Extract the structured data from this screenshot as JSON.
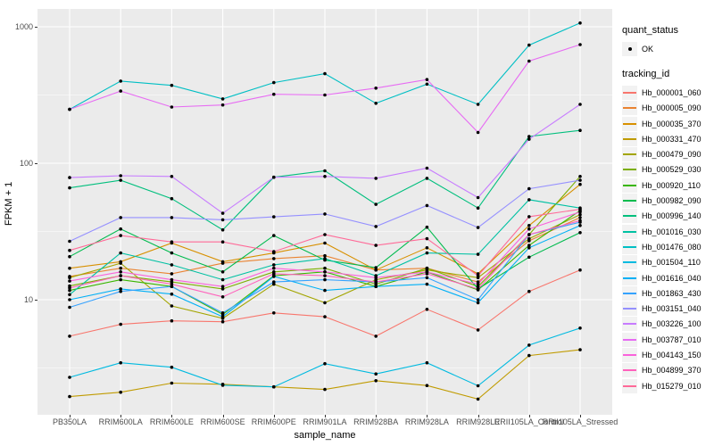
{
  "chart_data": {
    "type": "line",
    "title": "",
    "xlabel": "sample_name",
    "ylabel": "FPKM + 1",
    "y_scale": "log10",
    "ylim": [
      1.4,
      1400
    ],
    "y_ticks": [
      {
        "value": 10,
        "label": "10"
      },
      {
        "value": 100,
        "label": "100"
      },
      {
        "value": 1000,
        "label": "1000"
      }
    ],
    "y_minor_ticks": [
      3.1623,
      31.623,
      316.23
    ],
    "grid": "white major+minor on grey panel",
    "legend_position": "right",
    "marker": "black point on every vertex",
    "categories": [
      "PB350LA",
      "RRIM600LA",
      "RRIM600LE",
      "RRIM600SE",
      "RRIM600PE",
      "RRIM901LA",
      "RRIM928BA",
      "RRIM928LA",
      "RRIM928LE",
      "RRII105LA_Control",
      "RRII105LA_Stressed"
    ],
    "series": [
      {
        "name": "Hb_000001_060",
        "color": "#F8766D",
        "values": [
          5.4,
          6.6,
          7.0,
          6.9,
          8.0,
          7.5,
          5.4,
          8.5,
          6.0,
          11.5,
          16.5
        ]
      },
      {
        "name": "Hb_000005_090",
        "color": "#EA8331",
        "values": [
          14.8,
          17,
          15.5,
          18.5,
          20,
          21,
          16.5,
          17,
          13.5,
          27,
          40
        ]
      },
      {
        "name": "Hb_000035_370",
        "color": "#D89000",
        "values": [
          17,
          19,
          26,
          19,
          22,
          26,
          16.5,
          24,
          15.5,
          35,
          70
        ]
      },
      {
        "name": "Hb_000331_470",
        "color": "#C09B00",
        "values": [
          1.95,
          2.1,
          2.45,
          2.4,
          2.3,
          2.2,
          2.55,
          2.35,
          1.87,
          3.9,
          4.3
        ]
      },
      {
        "name": "Hb_000479_090",
        "color": "#A3A500",
        "values": [
          14.5,
          18.5,
          9.0,
          7.3,
          13,
          9.5,
          14,
          16.5,
          14.5,
          28,
          42
        ]
      },
      {
        "name": "Hb_000529_030",
        "color": "#7CAE00",
        "values": [
          12.6,
          15,
          13.5,
          12,
          16,
          17,
          13,
          17,
          12.5,
          30,
          80
        ]
      },
      {
        "name": "Hb_000920_110",
        "color": "#39B600",
        "values": [
          11.7,
          14,
          12.5,
          7.8,
          15,
          16,
          12.5,
          16,
          11.8,
          25,
          45
        ]
      },
      {
        "name": "Hb_000982_090",
        "color": "#00BB4E",
        "values": [
          20.7,
          33,
          22,
          16,
          29.5,
          19.5,
          17.2,
          34,
          12,
          20.5,
          31
        ]
      },
      {
        "name": "Hb_000996_140",
        "color": "#00BF7D",
        "values": [
          66,
          75,
          55,
          32.5,
          79,
          88,
          50,
          77.5,
          47,
          157,
          174
        ]
      },
      {
        "name": "Hb_001016_030",
        "color": "#00C1A3",
        "values": [
          10.9,
          22,
          18,
          14,
          18,
          20,
          15,
          22,
          21.5,
          54,
          47
        ]
      },
      {
        "name": "Hb_001476_080",
        "color": "#00BFC4",
        "values": [
          248,
          400,
          372,
          296,
          390,
          453,
          275,
          380,
          270,
          733,
          1065
        ]
      },
      {
        "name": "Hb_001504_110",
        "color": "#00BAE0",
        "values": [
          2.7,
          3.45,
          3.2,
          2.36,
          2.3,
          3.4,
          2.86,
          3.45,
          2.34,
          4.65,
          6.2
        ]
      },
      {
        "name": "Hb_001616_040",
        "color": "#00B0F6",
        "values": [
          10.0,
          12,
          11,
          7.5,
          14.8,
          11.7,
          12.5,
          13,
          9.5,
          24,
          35
        ]
      },
      {
        "name": "Hb_001863_430",
        "color": "#35A2FF",
        "values": [
          8.8,
          11.5,
          12.5,
          8.0,
          13.5,
          14,
          13.5,
          14.5,
          10,
          30,
          37
        ]
      },
      {
        "name": "Hb_003151_040",
        "color": "#9590FF",
        "values": [
          26.8,
          40,
          40,
          38.5,
          40.5,
          42.5,
          34.4,
          49,
          33.8,
          65,
          75
        ]
      },
      {
        "name": "Hb_003226_100",
        "color": "#C77CFF",
        "values": [
          78.5,
          81,
          80,
          43,
          79,
          80,
          77.5,
          92,
          56,
          150,
          270
        ]
      },
      {
        "name": "Hb_003787_010",
        "color": "#E76BF3",
        "values": [
          248,
          338,
          258,
          267,
          320,
          316,
          355,
          410,
          168,
          560,
          740
        ]
      },
      {
        "name": "Hb_004143_150",
        "color": "#FA62DB",
        "values": [
          13.7,
          16,
          14,
          12.5,
          17,
          16,
          14.5,
          16,
          13,
          33,
          44
        ]
      },
      {
        "name": "Hb_004899_370",
        "color": "#FF62BC",
        "values": [
          12.2,
          15,
          13,
          10.5,
          15.5,
          15,
          13.5,
          15.5,
          12,
          30,
          38
        ]
      },
      {
        "name": "Hb_015279_010",
        "color": "#FF6A98",
        "values": [
          23,
          29.5,
          26.5,
          26.5,
          22.5,
          30,
          25,
          28,
          15,
          40.6,
          46
        ]
      }
    ]
  },
  "legend": {
    "quant_status_title": "quant_status",
    "quant_status_ok_label": "OK",
    "tracking_id_title": "tracking_id"
  },
  "colors": {
    "panel_bg": "#EBEBEB",
    "grid": "#FFFFFF",
    "legend_key_bg": "#F2F2F2",
    "point": "#000000",
    "tick_text": "#4D4D4D"
  }
}
